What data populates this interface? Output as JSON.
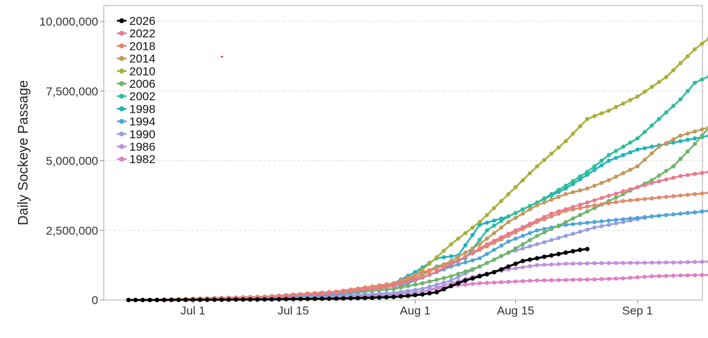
{
  "chart_data": {
    "type": "line",
    "title": "",
    "xlabel": "",
    "ylabel": "Daily Sockeye Passage",
    "ylim": [
      0,
      10000000
    ],
    "grid": "horizontal dashed",
    "legend_position": "top-left",
    "x_tick_labels": [
      "Jul 1",
      "Jul 15",
      "Aug 1",
      "Aug 15",
      "Sep 1"
    ],
    "x_tick_days": [
      0,
      14,
      31,
      45,
      62
    ],
    "x_days_ref": "days from Jul 1",
    "y_ticks": [
      0,
      2500000,
      5000000,
      7500000,
      10000000
    ],
    "y_tick_labels": [
      "0",
      "2,500,000",
      "5,000,000",
      "7,500,000",
      "10,000,000"
    ],
    "series": [
      {
        "name": "2026",
        "color": "#000000",
        "points": [
          [
            -9,
            0
          ],
          [
            -4,
            0
          ],
          [
            0,
            5000
          ],
          [
            10,
            20000
          ],
          [
            20,
            50000
          ],
          [
            25,
            80000
          ],
          [
            28,
            110000
          ],
          [
            30,
            150000
          ],
          [
            32,
            200000
          ],
          [
            34,
            280000
          ],
          [
            36,
            500000
          ],
          [
            38,
            700000
          ],
          [
            40,
            850000
          ],
          [
            42,
            1000000
          ],
          [
            44,
            1200000
          ],
          [
            46,
            1400000
          ],
          [
            49,
            1550000
          ],
          [
            52,
            1700000
          ],
          [
            54,
            1800000
          ],
          [
            55,
            1830000
          ]
        ]
      },
      {
        "name": "2022",
        "color": "#e87a8e",
        "points": [
          [
            -6,
            0
          ],
          [
            10,
            100000
          ],
          [
            20,
            250000
          ],
          [
            28,
            500000
          ],
          [
            33,
            900000
          ],
          [
            37,
            1400000
          ],
          [
            41,
            2000000
          ],
          [
            45,
            2500000
          ],
          [
            50,
            3100000
          ],
          [
            55,
            3500000
          ],
          [
            60,
            3900000
          ],
          [
            64,
            4200000
          ],
          [
            68,
            4450000
          ],
          [
            72,
            4600000
          ],
          [
            75,
            4630000
          ]
        ]
      },
      {
        "name": "2018",
        "color": "#e08a6a",
        "points": [
          [
            -6,
            0
          ],
          [
            10,
            120000
          ],
          [
            20,
            300000
          ],
          [
            28,
            600000
          ],
          [
            32,
            1000000
          ],
          [
            36,
            1300000
          ],
          [
            40,
            1800000
          ],
          [
            44,
            2300000
          ],
          [
            48,
            2800000
          ],
          [
            52,
            3200000
          ],
          [
            56,
            3400000
          ],
          [
            60,
            3550000
          ],
          [
            64,
            3650000
          ],
          [
            68,
            3750000
          ],
          [
            72,
            3850000
          ],
          [
            75,
            3950000
          ]
        ]
      },
      {
        "name": "2014",
        "color": "#c29a5b",
        "points": [
          [
            -6,
            0
          ],
          [
            10,
            120000
          ],
          [
            20,
            300000
          ],
          [
            28,
            550000
          ],
          [
            32,
            900000
          ],
          [
            36,
            1400000
          ],
          [
            40,
            2000000
          ],
          [
            44,
            2800000
          ],
          [
            48,
            3400000
          ],
          [
            52,
            3800000
          ],
          [
            55,
            4000000
          ],
          [
            58,
            4300000
          ],
          [
            62,
            4800000
          ],
          [
            65,
            5500000
          ],
          [
            68,
            5900000
          ],
          [
            72,
            6200000
          ],
          [
            75,
            6350000
          ]
        ]
      },
      {
        "name": "2010",
        "color": "#a8b03a",
        "points": [
          [
            -6,
            0
          ],
          [
            10,
            120000
          ],
          [
            20,
            300000
          ],
          [
            26,
            400000
          ],
          [
            30,
            700000
          ],
          [
            33,
            1300000
          ],
          [
            36,
            2000000
          ],
          [
            40,
            2800000
          ],
          [
            44,
            3800000
          ],
          [
            48,
            4800000
          ],
          [
            52,
            5700000
          ],
          [
            55,
            6500000
          ],
          [
            58,
            6800000
          ],
          [
            62,
            7300000
          ],
          [
            66,
            8000000
          ],
          [
            70,
            9000000
          ],
          [
            73,
            9600000
          ],
          [
            75,
            10050000
          ]
        ]
      },
      {
        "name": "2006",
        "color": "#6fb568",
        "points": [
          [
            -6,
            0
          ],
          [
            10,
            100000
          ],
          [
            20,
            250000
          ],
          [
            28,
            400000
          ],
          [
            32,
            600000
          ],
          [
            36,
            850000
          ],
          [
            40,
            1200000
          ],
          [
            44,
            1700000
          ],
          [
            48,
            2300000
          ],
          [
            52,
            2800000
          ],
          [
            56,
            3300000
          ],
          [
            60,
            3800000
          ],
          [
            64,
            4300000
          ],
          [
            67,
            4800000
          ],
          [
            70,
            5600000
          ],
          [
            73,
            6500000
          ],
          [
            75,
            6950000
          ]
        ]
      },
      {
        "name": "2002",
        "color": "#2fbd9a",
        "points": [
          [
            -6,
            0
          ],
          [
            10,
            100000
          ],
          [
            20,
            250000
          ],
          [
            28,
            500000
          ],
          [
            31,
            800000
          ],
          [
            34,
            1200000
          ],
          [
            38,
            1500000
          ],
          [
            41,
            2500000
          ],
          [
            44,
            3000000
          ],
          [
            48,
            3500000
          ],
          [
            52,
            4100000
          ],
          [
            55,
            4600000
          ],
          [
            58,
            5200000
          ],
          [
            62,
            5800000
          ],
          [
            65,
            6500000
          ],
          [
            68,
            7200000
          ],
          [
            70,
            7800000
          ],
          [
            73,
            8150000
          ],
          [
            75,
            8250000
          ]
        ]
      },
      {
        "name": "1998",
        "color": "#1fb3bb",
        "points": [
          [
            -6,
            0
          ],
          [
            10,
            100000
          ],
          [
            20,
            250000
          ],
          [
            28,
            600000
          ],
          [
            31,
            1000000
          ],
          [
            34,
            1500000
          ],
          [
            37,
            1600000
          ],
          [
            40,
            2700000
          ],
          [
            44,
            3000000
          ],
          [
            48,
            3500000
          ],
          [
            52,
            4000000
          ],
          [
            55,
            4500000
          ],
          [
            58,
            5000000
          ],
          [
            62,
            5400000
          ],
          [
            66,
            5600000
          ],
          [
            70,
            5800000
          ],
          [
            73,
            5950000
          ],
          [
            75,
            6050000
          ]
        ]
      },
      {
        "name": "1994",
        "color": "#4fa6d8",
        "points": [
          [
            -6,
            0
          ],
          [
            10,
            80000
          ],
          [
            20,
            200000
          ],
          [
            28,
            400000
          ],
          [
            32,
            800000
          ],
          [
            36,
            1200000
          ],
          [
            40,
            1500000
          ],
          [
            44,
            2100000
          ],
          [
            48,
            2500000
          ],
          [
            52,
            2700000
          ],
          [
            56,
            2800000
          ],
          [
            60,
            2900000
          ],
          [
            64,
            3000000
          ],
          [
            68,
            3100000
          ],
          [
            72,
            3200000
          ],
          [
            75,
            3250000
          ]
        ]
      },
      {
        "name": "1990",
        "color": "#9b9ee0",
        "points": [
          [
            -6,
            0
          ],
          [
            10,
            60000
          ],
          [
            20,
            150000
          ],
          [
            28,
            250000
          ],
          [
            32,
            400000
          ],
          [
            36,
            700000
          ],
          [
            40,
            1200000
          ],
          [
            44,
            1700000
          ],
          [
            48,
            2000000
          ],
          [
            52,
            2300000
          ],
          [
            56,
            2600000
          ],
          [
            60,
            2800000
          ],
          [
            64,
            3000000
          ],
          [
            68,
            3100000
          ],
          [
            72,
            3200000
          ],
          [
            75,
            3300000
          ]
        ]
      },
      {
        "name": "1986",
        "color": "#c190dd",
        "points": [
          [
            -6,
            0
          ],
          [
            10,
            50000
          ],
          [
            20,
            120000
          ],
          [
            28,
            200000
          ],
          [
            32,
            300000
          ],
          [
            36,
            600000
          ],
          [
            40,
            900000
          ],
          [
            44,
            1100000
          ],
          [
            48,
            1250000
          ],
          [
            52,
            1300000
          ],
          [
            56,
            1320000
          ],
          [
            60,
            1330000
          ],
          [
            64,
            1340000
          ],
          [
            68,
            1350000
          ],
          [
            72,
            1380000
          ],
          [
            75,
            1450000
          ]
        ]
      },
      {
        "name": "1982",
        "color": "#e07fc6",
        "points": [
          [
            -6,
            0
          ],
          [
            10,
            40000
          ],
          [
            20,
            100000
          ],
          [
            28,
            180000
          ],
          [
            32,
            300000
          ],
          [
            36,
            500000
          ],
          [
            40,
            600000
          ],
          [
            44,
            650000
          ],
          [
            48,
            700000
          ],
          [
            52,
            720000
          ],
          [
            56,
            740000
          ],
          [
            60,
            780000
          ],
          [
            64,
            850000
          ],
          [
            68,
            880000
          ],
          [
            72,
            900000
          ],
          [
            75,
            920000
          ]
        ]
      }
    ]
  }
}
